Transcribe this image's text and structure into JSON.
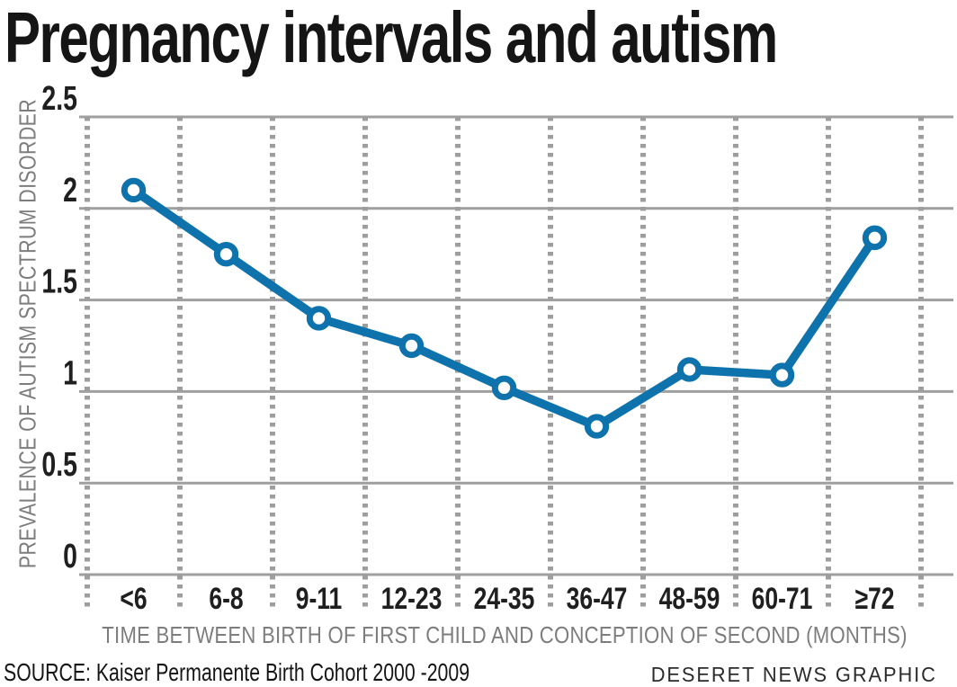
{
  "title": "Pregnancy intervals and autism",
  "chart_data": {
    "type": "line",
    "title": "Pregnancy intervals and autism",
    "categories": [
      "<6",
      "6-8",
      "9-11",
      "12-23",
      "24-35",
      "36-47",
      "48-59",
      "60-71",
      "≥72"
    ],
    "series": [
      {
        "name": "Prevalence of autism spectrum disorder",
        "values": [
          2.1,
          1.75,
          1.4,
          1.25,
          1.02,
          0.81,
          1.12,
          1.09,
          1.84
        ]
      }
    ],
    "xlabel": "TIME BETWEEN BIRTH OF FIRST CHILD AND CONCEPTION OF SECOND (MONTHS)",
    "ylabel": "PREVALENCE OF AUTISM SPECTRUM DISORDER",
    "yticks": [
      0,
      0.5,
      1,
      1.5,
      2,
      2.5
    ],
    "ylim": [
      0,
      2.5
    ],
    "grid": true,
    "legend": "none",
    "marker": "open-circle",
    "colors": {
      "line": "#0e73ac",
      "gridline": "#9f9f9f",
      "divider_dots": "#9e9e9e",
      "tick_text": "#1f1f1f",
      "axis_text": "#7d7d7d"
    }
  },
  "footer": {
    "source": "SOURCE: Kaiser Permanente Birth Cohort 2000 -2009",
    "credit": "DESERET NEWS GRAPHIC"
  }
}
